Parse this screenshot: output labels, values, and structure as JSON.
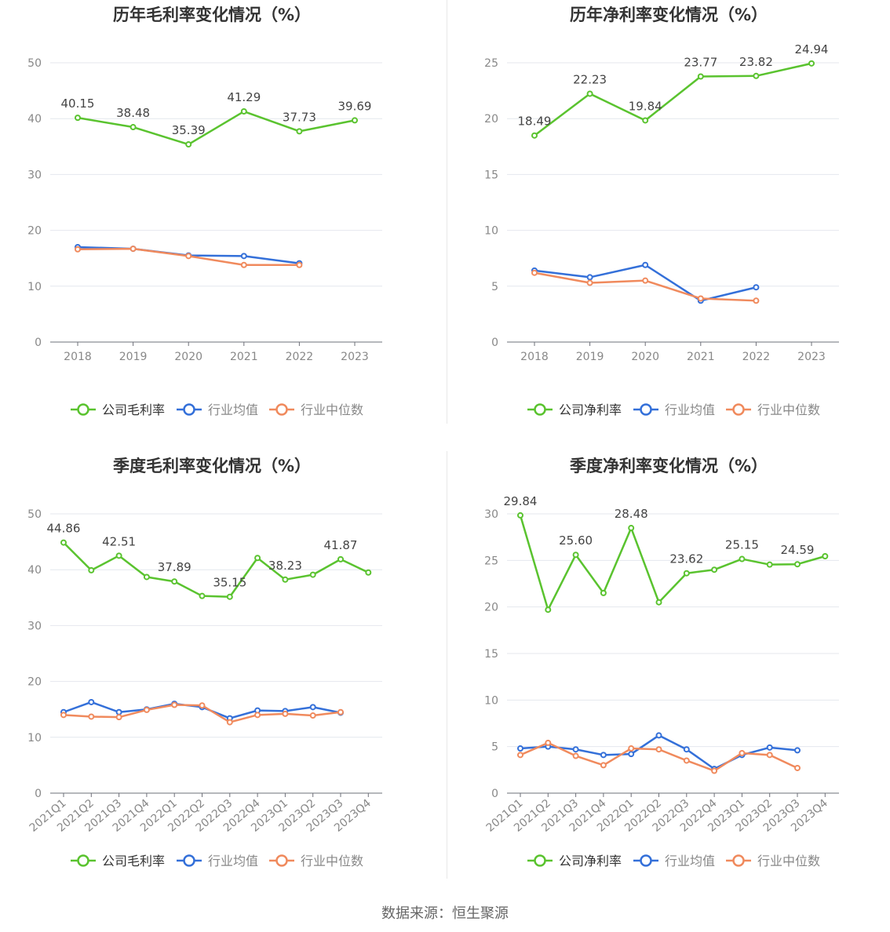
{
  "source": "数据来源：恒生聚源",
  "colors": {
    "company": "#5ac32f",
    "avg": "#3470d9",
    "median": "#f08a5d"
  },
  "chart_data": [
    {
      "type": "line",
      "title": "历年毛利率变化情况（%）",
      "categories": [
        "2018",
        "2019",
        "2020",
        "2021",
        "2022",
        "2023"
      ],
      "ylim": [
        0,
        50
      ],
      "yticks": [
        0,
        10,
        20,
        30,
        40,
        50
      ],
      "grid": true,
      "legend": "bottom",
      "series": [
        {
          "name": "公司毛利率",
          "values": [
            40.15,
            38.48,
            35.39,
            41.29,
            37.73,
            39.69
          ],
          "labels": [
            "40.15",
            "38.48",
            "35.39",
            "41.29",
            "37.73",
            "39.69"
          ]
        },
        {
          "name": "行业均值",
          "values": [
            17.0,
            16.7,
            15.5,
            15.4,
            14.1,
            null
          ]
        },
        {
          "name": "行业中位数",
          "values": [
            16.6,
            16.7,
            15.4,
            13.8,
            13.8,
            null
          ]
        }
      ]
    },
    {
      "type": "line",
      "title": "历年净利率变化情况（%）",
      "categories": [
        "2018",
        "2019",
        "2020",
        "2021",
        "2022",
        "2023"
      ],
      "ylim": [
        0,
        25
      ],
      "yticks": [
        0,
        5,
        10,
        15,
        20,
        25
      ],
      "grid": true,
      "legend": "bottom",
      "series": [
        {
          "name": "公司净利率",
          "values": [
            18.49,
            22.23,
            19.84,
            23.77,
            23.82,
            24.94
          ],
          "labels": [
            "18.49",
            "22.23",
            "19.84",
            "23.77",
            "23.82",
            "24.94"
          ]
        },
        {
          "name": "行业均值",
          "values": [
            6.4,
            5.8,
            6.9,
            3.7,
            4.9,
            null
          ]
        },
        {
          "name": "行业中位数",
          "values": [
            6.2,
            5.3,
            5.5,
            3.9,
            3.7,
            null
          ]
        }
      ]
    },
    {
      "type": "line",
      "title": "季度毛利率变化情况（%）",
      "categories": [
        "2021Q1",
        "2021Q2",
        "2021Q3",
        "2021Q4",
        "2022Q1",
        "2022Q2",
        "2022Q3",
        "2022Q4",
        "2023Q1",
        "2023Q2",
        "2023Q3",
        "2023Q4"
      ],
      "ylim": [
        0,
        50
      ],
      "yticks": [
        0,
        10,
        20,
        30,
        40,
        50
      ],
      "grid": true,
      "legend": "bottom",
      "series": [
        {
          "name": "公司毛利率",
          "values": [
            44.86,
            39.9,
            42.51,
            38.7,
            37.89,
            35.3,
            35.15,
            42.1,
            38.23,
            39.1,
            41.87,
            39.5
          ],
          "labels": [
            "44.86",
            "",
            "42.51",
            "",
            "37.89",
            "",
            "35.15",
            "",
            "38.23",
            "",
            "41.87",
            ""
          ]
        },
        {
          "name": "行业均值",
          "values": [
            14.5,
            16.3,
            14.5,
            15.0,
            16.0,
            15.4,
            13.4,
            14.8,
            14.7,
            15.4,
            14.4,
            null
          ]
        },
        {
          "name": "行业中位数",
          "values": [
            14.0,
            13.7,
            13.6,
            14.9,
            15.8,
            15.7,
            12.7,
            14.0,
            14.2,
            13.9,
            14.5,
            null
          ]
        }
      ]
    },
    {
      "type": "line",
      "title": "季度净利率变化情况（%）",
      "categories": [
        "2021Q1",
        "2021Q2",
        "2021Q3",
        "2021Q4",
        "2022Q1",
        "2022Q2",
        "2022Q3",
        "2022Q4",
        "2023Q1",
        "2023Q2",
        "2023Q3",
        "2023Q4"
      ],
      "ylim": [
        0,
        30
      ],
      "yticks": [
        0,
        5,
        10,
        15,
        20,
        25,
        30
      ],
      "grid": true,
      "legend": "bottom",
      "series": [
        {
          "name": "公司净利率",
          "values": [
            29.84,
            19.7,
            25.6,
            21.5,
            28.48,
            20.5,
            23.62,
            24.0,
            25.15,
            24.55,
            24.59,
            25.45
          ],
          "labels": [
            "29.84",
            "",
            "25.60",
            "",
            "28.48",
            "",
            "23.62",
            "",
            "25.15",
            "",
            "24.59",
            ""
          ]
        },
        {
          "name": "行业均值",
          "values": [
            4.8,
            5.0,
            4.7,
            4.1,
            4.2,
            6.2,
            4.7,
            2.6,
            4.1,
            4.9,
            4.6,
            null
          ]
        },
        {
          "name": "行业中位数",
          "values": [
            4.1,
            5.4,
            4.0,
            3.0,
            4.8,
            4.7,
            3.5,
            2.4,
            4.3,
            4.1,
            2.7,
            null
          ]
        }
      ]
    }
  ]
}
